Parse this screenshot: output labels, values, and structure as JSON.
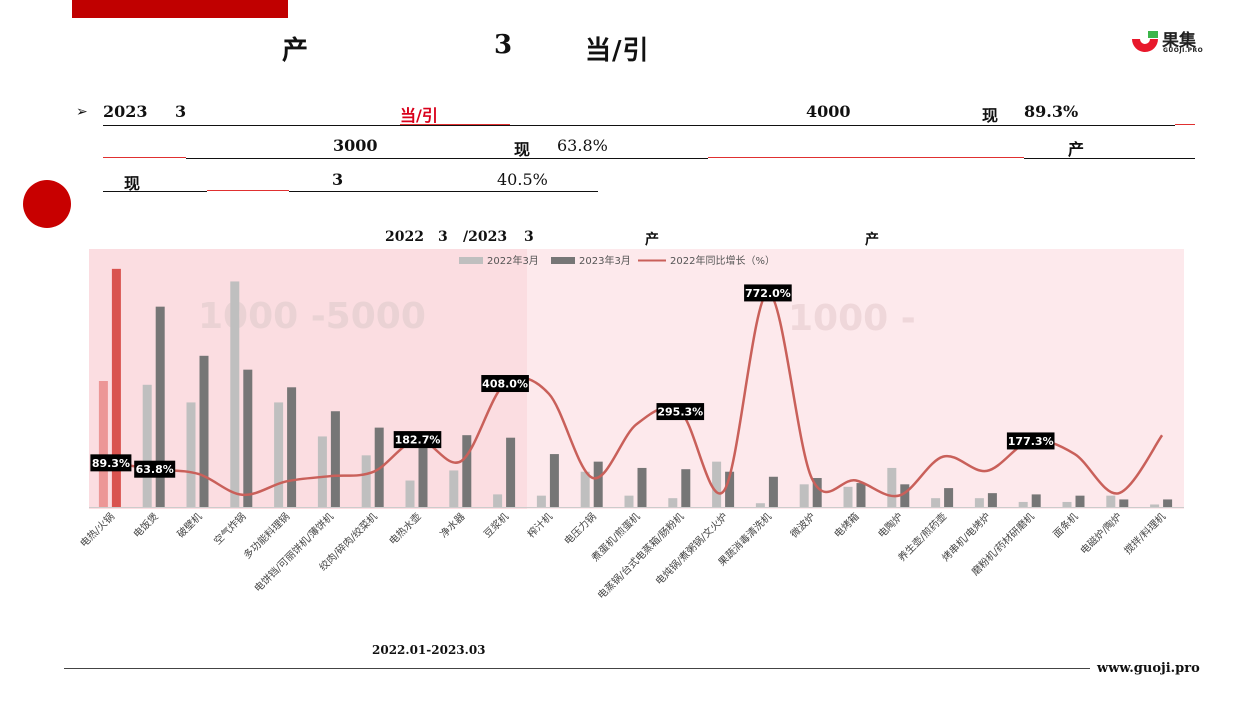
{
  "header": {
    "title_parts": [
      "产",
      "3",
      "当/引"
    ],
    "logo_main": "果集",
    "logo_sub": "GUOJI.PRO"
  },
  "summary": {
    "bullet": "➢",
    "line1": [
      "2023",
      "3",
      "当/引",
      "4000",
      "现",
      "89.3%"
    ],
    "line2": [
      "3000",
      "现",
      "63.8%",
      "产"
    ],
    "line3": [
      "现",
      "3",
      "40.5%"
    ]
  },
  "chart_title": [
    "2022",
    "3",
    "/2023",
    "3",
    "产",
    "产"
  ],
  "overlay_left": "1000 -5000",
  "overlay_right": "1000 -",
  "footer": {
    "note": "2022.01-2023.03",
    "url": "www.guoji.pro"
  },
  "colors": {
    "brand_red": "#c00000",
    "bar_2022": "#bfbfbf",
    "bar_2023": "#767676",
    "highlight_2022": "#ec9696",
    "highlight_2023": "#d9534f",
    "growth_line": "#c9605a",
    "band_left": "#fbdde1",
    "band_right": "#fde9ec"
  },
  "chart_data": {
    "type": "bar",
    "title": "",
    "legend_position": "top",
    "categories": [
      "电热/火锅",
      "电饭煲",
      "破壁机",
      "空气炸锅",
      "多功能料理锅",
      "电饼铛/可丽饼机/薄饼机",
      "绞肉/碎肉/绞菜机",
      "电热水壶",
      "净水器",
      "豆浆机",
      "榨汁机",
      "电压力锅",
      "煮蛋机/煎蛋机",
      "电蒸锅/台式电蒸箱/肠粉机",
      "电炖锅/煮粥锅/文火炉",
      "果蔬消毒清洗机",
      "微波炉",
      "电烤箱",
      "电陶炉",
      "养生壶/煎药壶",
      "烤串机/电烤炉",
      "磨粉机/药材研磨机",
      "面条机",
      "电磁炉/陶炉",
      "搅拌/料理机"
    ],
    "series": [
      {
        "name": "2022年3月",
        "values": [
          1.0,
          0.97,
          0.83,
          1.79,
          0.83,
          0.56,
          0.41,
          0.21,
          0.29,
          0.1,
          0.09,
          0.28,
          0.09,
          0.07,
          0.36,
          0.03,
          0.18,
          0.16,
          0.31,
          0.07,
          0.07,
          0.04,
          0.04,
          0.09,
          0.02
        ]
      },
      {
        "name": "2023年3月",
        "values": [
          1.89,
          1.59,
          1.2,
          1.09,
          0.95,
          0.76,
          0.63,
          0.58,
          0.57,
          0.55,
          0.42,
          0.36,
          0.31,
          0.3,
          0.28,
          0.24,
          0.23,
          0.19,
          0.18,
          0.15,
          0.11,
          0.1,
          0.09,
          0.06,
          0.06
        ]
      },
      {
        "name": "2022年同比增长（%）",
        "values": [
          89.3,
          63.8,
          44.6,
          -39.1,
          14.5,
          35.7,
          53.7,
          182.7,
          96.6,
          408.0,
          366.7,
          28.6,
          244.4,
          295.3,
          -22.2,
          772.0,
          27.8,
          18.8,
          -41.9,
          114.3,
          57.1,
          177.3,
          125.0,
          -33.3,
          200.0
        ]
      }
    ],
    "labeled_points": [
      {
        "category": "电热/火锅",
        "label": "89.3%"
      },
      {
        "category": "电饭煲",
        "label": "63.8%"
      },
      {
        "category": "电热水壶",
        "label": "182.7%"
      },
      {
        "category": "豆浆机",
        "label": "408.0%"
      },
      {
        "category": "电蒸锅/台式电蒸箱/肠粉机",
        "label": "295.3%"
      },
      {
        "category": "果蔬消毒清洗机",
        "label": "772.0%"
      },
      {
        "category": "磨粉机/药材研磨机",
        "label": "177.3%"
      }
    ]
  }
}
